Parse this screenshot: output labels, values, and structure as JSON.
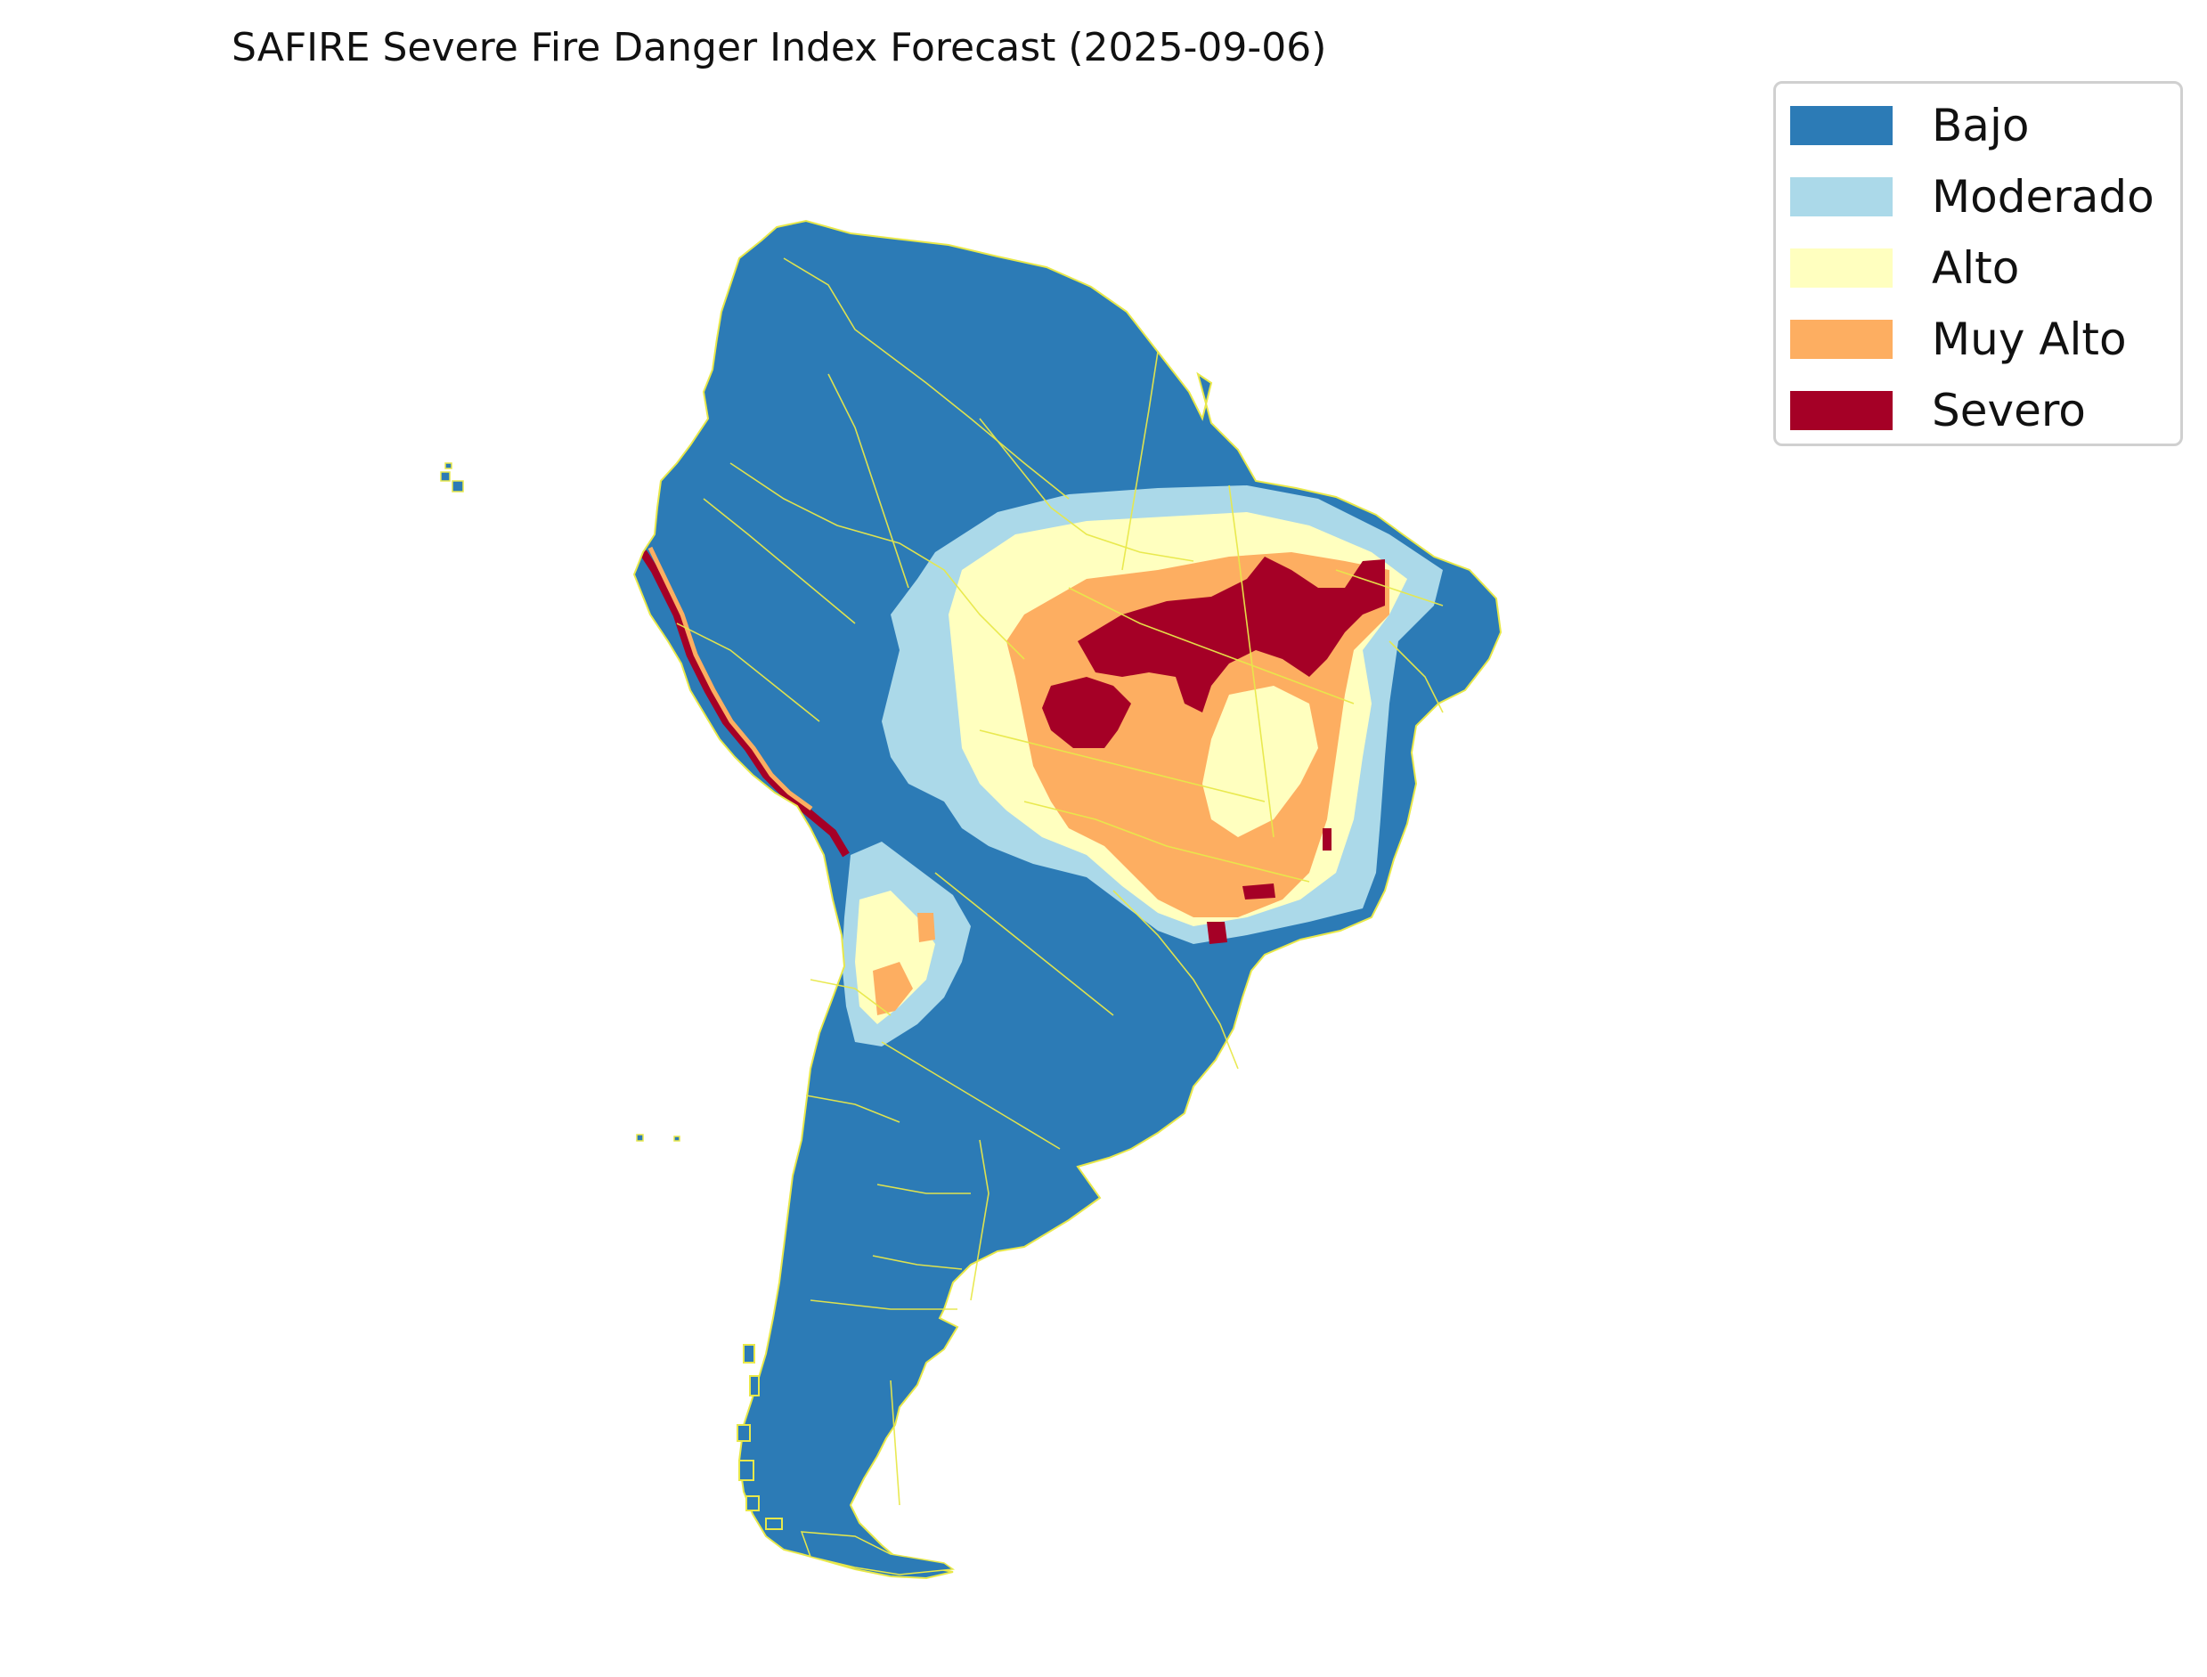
{
  "title": "SAFIRE Severe Fire Danger Index Forecast (2025-09-06)",
  "legend": [
    {
      "label": "Bajo",
      "color": "#2c7bb6"
    },
    {
      "label": "Moderado",
      "color": "#abd9e9"
    },
    {
      "label": "Alto",
      "color": "#ffffbf"
    },
    {
      "label": "Muy Alto",
      "color": "#fdae61"
    },
    {
      "label": "Severo",
      "color": "#a50026"
    }
  ],
  "border_color": "#e8e84a"
}
